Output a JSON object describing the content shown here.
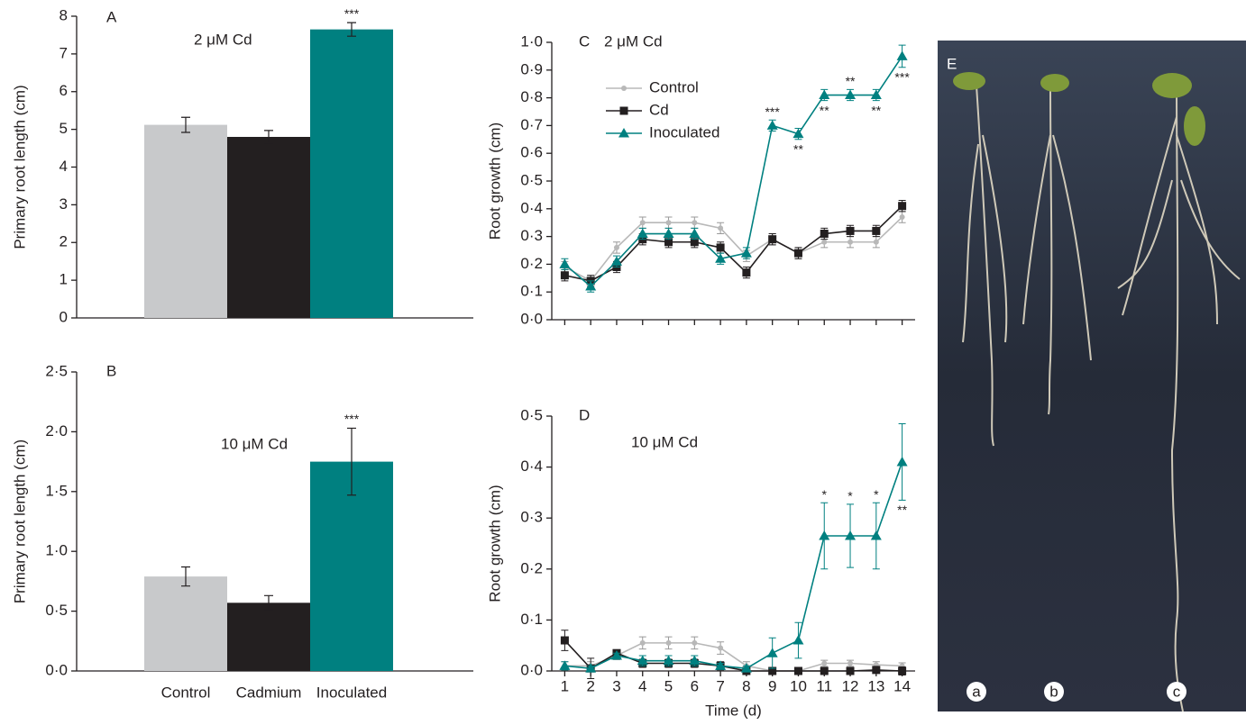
{
  "chart_data": [
    {
      "type": "bar",
      "panel": "A",
      "subtitle": "2 μM Cd",
      "y_label": "Primary root length (cm)",
      "categories": [
        null,
        null,
        null
      ],
      "values": [
        5.12,
        4.8,
        7.65
      ],
      "errors": [
        0.2,
        0.17,
        0.18
      ],
      "colors": [
        "#c8c9cb",
        "#231f20",
        "#008080"
      ],
      "ylim": [
        0,
        8
      ],
      "yticks": [
        0,
        1,
        2,
        3,
        4,
        5,
        6,
        7,
        8
      ],
      "annotations": [
        {
          "index": 2,
          "text": "***"
        }
      ]
    },
    {
      "type": "bar",
      "panel": "B",
      "subtitle": "10 μM Cd",
      "y_label": "Primary root length (cm)",
      "categories": [
        "Control",
        "Cadmium",
        "Inoculated"
      ],
      "values": [
        0.79,
        0.57,
        1.75
      ],
      "errors": [
        0.08,
        0.06,
        0.28
      ],
      "colors": [
        "#c8c9cb",
        "#231f20",
        "#008080"
      ],
      "ylim": [
        0,
        2.5
      ],
      "yticks": [
        {
          "value": 0,
          "label": "0·0"
        },
        {
          "value": 0.5,
          "label": "0·5"
        },
        {
          "value": 1,
          "label": "1·0"
        },
        {
          "value": 1.5,
          "label": "1·5"
        },
        {
          "value": 2,
          "label": "2·0"
        },
        {
          "value": 2.5,
          "label": "2·5"
        }
      ],
      "annotations": [
        {
          "index": 2,
          "text": "***"
        }
      ]
    },
    {
      "type": "line",
      "panel": "C",
      "subtitle": "2 μM Cd",
      "y_label": "Root growth (cm)",
      "x": [
        1,
        2,
        3,
        4,
        5,
        6,
        7,
        8,
        9,
        10,
        11,
        12,
        13,
        14
      ],
      "xlim": [
        0.5,
        14.5
      ],
      "xticks": [
        1,
        2,
        3,
        4,
        5,
        6,
        7,
        8,
        9,
        10,
        11,
        12,
        13,
        14
      ],
      "xtick_labels": false,
      "ylim": [
        0,
        1
      ],
      "yticks": [
        {
          "value": 0,
          "label": "0·0"
        },
        {
          "value": 0.1,
          "label": "0·1"
        },
        {
          "value": 0.2,
          "label": "0·2"
        },
        {
          "value": 0.3,
          "label": "0·3"
        },
        {
          "value": 0.4,
          "label": "0·4"
        },
        {
          "value": 0.5,
          "label": "0·5"
        },
        {
          "value": 0.6,
          "label": "0·6"
        },
        {
          "value": 0.7,
          "label": "0·7"
        },
        {
          "value": 0.8,
          "label": "0·8"
        },
        {
          "value": 0.9,
          "label": "0·9"
        },
        {
          "value": 1,
          "label": "1·0"
        }
      ],
      "legend": "upper left",
      "series": [
        {
          "name": "Control",
          "color": "#b8b8b8",
          "marker": "circle",
          "values": [
            0.19,
            0.14,
            0.26,
            0.35,
            0.35,
            0.35,
            0.33,
            0.23,
            0.29,
            0.24,
            0.28,
            0.28,
            0.28,
            0.37
          ],
          "errors": [
            0.02,
            0.02,
            0.02,
            0.02,
            0.02,
            0.02,
            0.02,
            0.02,
            0.02,
            0.02,
            0.02,
            0.02,
            0.02,
            0.02
          ]
        },
        {
          "name": "Cd",
          "color": "#231f20",
          "marker": "square",
          "values": [
            0.16,
            0.14,
            0.19,
            0.29,
            0.28,
            0.28,
            0.26,
            0.17,
            0.29,
            0.24,
            0.31,
            0.32,
            0.32,
            0.41
          ],
          "errors": [
            0.02,
            0.02,
            0.02,
            0.02,
            0.02,
            0.02,
            0.02,
            0.02,
            0.02,
            0.02,
            0.02,
            0.02,
            0.02,
            0.02
          ]
        },
        {
          "name": "Inoculated",
          "color": "#008080",
          "marker": "triangle",
          "values": [
            0.2,
            0.12,
            0.21,
            0.31,
            0.31,
            0.31,
            0.22,
            0.24,
            0.7,
            0.67,
            0.81,
            0.81,
            0.81,
            0.95
          ],
          "errors": [
            0.02,
            0.02,
            0.02,
            0.02,
            0.02,
            0.02,
            0.02,
            0.02,
            0.02,
            0.02,
            0.02,
            0.02,
            0.02,
            0.04
          ]
        }
      ],
      "annotations": [
        {
          "series": 2,
          "index": 8,
          "text": "***",
          "side": "above"
        },
        {
          "series": 2,
          "index": 9,
          "text": "**",
          "side": "below"
        },
        {
          "series": 2,
          "index": 10,
          "text": "**",
          "side": "below"
        },
        {
          "series": 2,
          "index": 11,
          "text": "**",
          "side": "above"
        },
        {
          "series": 2,
          "index": 12,
          "text": "**",
          "side": "below"
        },
        {
          "series": 2,
          "index": 13,
          "text": "***",
          "side": "below"
        }
      ]
    },
    {
      "type": "line",
      "panel": "D",
      "subtitle": "10 μM Cd",
      "y_label": "Root growth (cm)",
      "x_label": "Time (d)",
      "x": [
        1,
        2,
        3,
        4,
        5,
        6,
        7,
        8,
        9,
        10,
        11,
        12,
        13,
        14
      ],
      "xlim": [
        0.5,
        14.5
      ],
      "xticks": [
        1,
        2,
        3,
        4,
        5,
        6,
        7,
        8,
        9,
        10,
        11,
        12,
        13,
        14
      ],
      "xtick_labels": true,
      "ylim": [
        0,
        0.5
      ],
      "yticks": [
        {
          "value": 0,
          "label": "0·0"
        },
        {
          "value": 0.1,
          "label": "0·1"
        },
        {
          "value": 0.2,
          "label": "0·2"
        },
        {
          "value": 0.3,
          "label": "0·3"
        },
        {
          "value": 0.4,
          "label": "0·4"
        },
        {
          "value": 0.5,
          "label": "0·5"
        }
      ],
      "series": [
        {
          "name": "Control",
          "color": "#b8b8b8",
          "marker": "circle",
          "values": [
            0.01,
            0.01,
            0.03,
            0.055,
            0.055,
            0.055,
            0.045,
            0.01,
            0.0,
            0.0,
            0.015,
            0.015,
            0.012,
            0.01
          ],
          "errors": [
            0.008,
            0.008,
            0.008,
            0.012,
            0.012,
            0.012,
            0.012,
            0.008,
            0.005,
            0.005,
            0.006,
            0.006,
            0.006,
            0.006
          ]
        },
        {
          "name": "Cd",
          "color": "#231f20",
          "marker": "square",
          "values": [
            0.06,
            0.005,
            0.035,
            0.015,
            0.015,
            0.015,
            0.01,
            0.0,
            0.0,
            0.0,
            0.0,
            0.0,
            0.002,
            0.0
          ],
          "errors": [
            0.02,
            0.02,
            0.005,
            0.008,
            0.008,
            0.008,
            0.008,
            0.005,
            0.005,
            0.005,
            0.005,
            0.005,
            0.005,
            0.008
          ]
        },
        {
          "name": "Inoculated",
          "color": "#008080",
          "marker": "triangle",
          "values": [
            0.01,
            0.005,
            0.03,
            0.02,
            0.02,
            0.02,
            0.01,
            0.005,
            0.035,
            0.06,
            0.265,
            0.265,
            0.265,
            0.41
          ],
          "errors": [
            0.008,
            0.005,
            0.005,
            0.01,
            0.01,
            0.01,
            0.005,
            0.005,
            0.03,
            0.035,
            0.065,
            0.062,
            0.065,
            0.075
          ]
        }
      ],
      "annotations": [
        {
          "series": 2,
          "index": 10,
          "text": "*",
          "side": "above"
        },
        {
          "series": 2,
          "index": 11,
          "text": "*",
          "side": "above"
        },
        {
          "series": 2,
          "index": 12,
          "text": "*",
          "side": "above"
        },
        {
          "series": 2,
          "index": 13,
          "text": "**",
          "side": "below"
        }
      ]
    }
  ],
  "photo": {
    "panel": "E",
    "labels": [
      "a",
      "b",
      "c"
    ]
  }
}
